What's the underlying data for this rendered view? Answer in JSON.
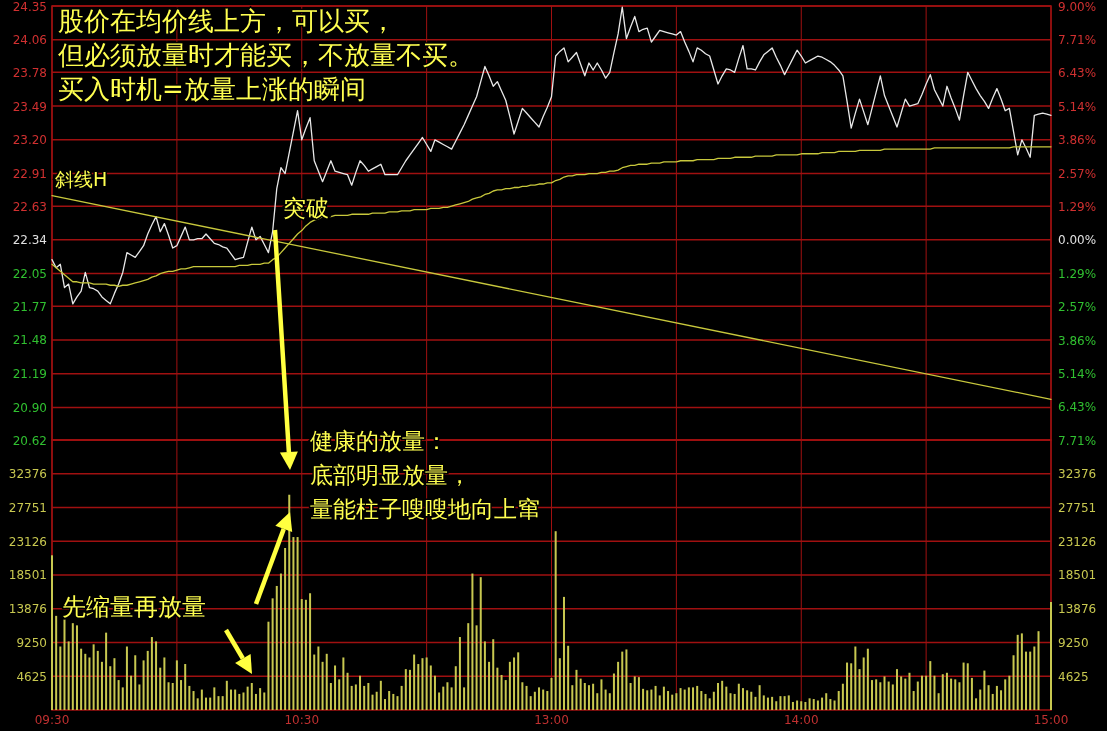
{
  "chart_data": [
    {
      "type": "line",
      "categories": [
        "09:30",
        null,
        null,
        null,
        null,
        null,
        null,
        null,
        null,
        null,
        null,
        null,
        null,
        null,
        null,
        null,
        null,
        null,
        null,
        null,
        null,
        null,
        null,
        null,
        null,
        null,
        null,
        null,
        null,
        null,
        null,
        null,
        null,
        null,
        null,
        null,
        null,
        null,
        null,
        null,
        null,
        null,
        null,
        null,
        null,
        null,
        null,
        null,
        null,
        null,
        null,
        null,
        null,
        null,
        null,
        null,
        null,
        null,
        null,
        null,
        "10:30",
        null,
        null,
        null,
        null,
        null,
        null,
        null,
        null,
        null,
        null,
        null,
        null,
        null,
        null,
        null,
        null,
        null,
        null,
        null,
        null,
        null,
        null,
        null,
        null,
        null,
        null,
        null,
        null,
        null,
        null,
        null,
        null,
        null,
        null,
        null,
        null,
        null,
        null,
        null,
        null,
        null,
        null,
        null,
        null,
        null,
        null,
        null,
        null,
        null,
        null,
        null,
        null,
        null,
        null,
        null,
        null,
        null,
        null,
        null,
        "13:00",
        null,
        null,
        null,
        null,
        null,
        null,
        null,
        null,
        null,
        null,
        null,
        null,
        null,
        null,
        null,
        null,
        null,
        null,
        null,
        null,
        null,
        null,
        null,
        null,
        null,
        null,
        null,
        null,
        null,
        null,
        null,
        null,
        null,
        null,
        null,
        null,
        null,
        null,
        null,
        null,
        null,
        null,
        null,
        null,
        null,
        null,
        null,
        null,
        null,
        null,
        null,
        null,
        null,
        null,
        null,
        null,
        null,
        null,
        null,
        "14:00",
        null,
        null,
        null,
        null,
        null,
        null,
        null,
        null,
        null,
        null,
        null,
        null,
        null,
        null,
        null,
        null,
        null,
        null,
        null,
        null,
        null,
        null,
        null,
        null,
        null,
        null,
        null,
        null,
        null,
        null,
        null,
        null,
        null,
        null,
        null,
        null,
        null,
        null,
        null,
        null,
        null,
        null,
        null,
        null,
        null,
        null,
        null,
        null,
        null,
        null,
        null,
        null,
        null,
        null,
        null,
        null,
        null,
        null,
        null,
        "15:00"
      ],
      "ylim": [
        20.62,
        24.35
      ],
      "yticks": [
        {
          "value": 24.35,
          "label": "24.35"
        },
        {
          "value": 24.06,
          "label": "24.06"
        },
        {
          "value": 23.78,
          "label": "23.78"
        },
        {
          "value": 23.49,
          "label": "23.49"
        },
        {
          "value": 23.2,
          "label": "23.20"
        },
        {
          "value": 22.91,
          "label": "22.91"
        },
        {
          "value": 22.63,
          "label": "22.63"
        },
        {
          "value": 22.34,
          "label": "22.34"
        },
        {
          "value": 22.05,
          "label": "22.05"
        },
        {
          "value": 21.77,
          "label": "21.77"
        },
        {
          "value": 21.48,
          "label": "21.48"
        },
        {
          "value": 21.19,
          "label": "21.19"
        },
        {
          "value": 20.9,
          "label": "20.90"
        },
        {
          "value": 20.62,
          "label": "20.62"
        }
      ],
      "y2lim": [
        -7.71,
        9.0
      ],
      "y2ticks": [
        {
          "value": 9.0,
          "label": "9.00%"
        },
        {
          "value": 7.71,
          "label": "7.71%"
        },
        {
          "value": 6.43,
          "label": "6.43%"
        },
        {
          "value": 5.14,
          "label": "5.14%"
        },
        {
          "value": 3.86,
          "label": "3.86%"
        },
        {
          "value": 2.57,
          "label": "2.57%"
        },
        {
          "value": 1.29,
          "label": "1.29%"
        },
        {
          "value": 0,
          "label": "0.00%"
        },
        {
          "value": -1.29,
          "label": "1.29%"
        },
        {
          "value": -2.57,
          "label": "2.57%"
        },
        {
          "value": -3.86,
          "label": "3.86%"
        },
        {
          "value": -5.14,
          "label": "5.14%"
        },
        {
          "value": -6.43,
          "label": "6.43%"
        },
        {
          "value": -7.71,
          "label": "7.71%"
        }
      ],
      "tick_labels": "y",
      "grid": true,
      "series": [
        {
          "color": "#e8e8e8",
          "values": [
            22.17,
            22.1,
            22.13,
            21.93,
            21.96,
            21.79,
            21.85,
            21.9,
            22.06,
            21.93,
            21.92,
            21.9,
            21.85,
            21.82,
            21.79,
            21.88,
            21.96,
            22.06,
            22.23,
            22.21,
            22.19,
            22.24,
            22.29,
            22.39,
            22.47,
            22.54,
            22.41,
            22.48,
            22.38,
            22.27,
            22.29,
            22.37,
            22.45,
            22.34,
            22.34,
            22.35,
            22.35,
            22.39,
            22.35,
            22.31,
            22.3,
            22.28,
            22.27,
            22.22,
            22.17,
            22.18,
            22.19,
            22.32,
            22.45,
            22.34,
            22.37,
            22.3,
            22.23,
            22.41,
            22.78,
            22.96,
            22.91,
            23.09,
            23.27,
            23.45,
            23.2,
            23.3,
            23.39,
            23.02,
            22.93,
            22.84,
            22.93,
            23.02,
            22.93,
            22.92,
            22.91,
            22.9,
            22.81,
            22.92,
            23.02,
            22.98,
            22.93,
            22.95,
            22.97,
            22.99,
            22.9,
            22.9,
            22.9,
            22.9,
            22.96,
            23.02,
            23.07,
            23.12,
            23.17,
            23.22,
            23.16,
            23.1,
            23.2,
            23.18,
            23.16,
            23.14,
            23.12,
            23.19,
            23.26,
            23.33,
            23.41,
            23.49,
            23.57,
            23.7,
            23.83,
            23.75,
            23.66,
            23.7,
            23.62,
            23.54,
            23.4,
            23.25,
            23.36,
            23.47,
            23.43,
            23.39,
            23.35,
            23.31,
            23.4,
            23.48,
            23.57,
            23.92,
            23.96,
            23.99,
            23.87,
            23.91,
            23.95,
            23.85,
            23.75,
            23.86,
            23.8,
            23.86,
            23.8,
            23.73,
            23.78,
            23.95,
            24.11,
            24.34,
            24.07,
            24.17,
            24.26,
            24.13,
            24.15,
            24.16,
            24.04,
            24.09,
            24.14,
            24.13,
            24.12,
            24.11,
            24.1,
            24.13,
            24.04,
            23.96,
            23.87,
            23.99,
            23.97,
            23.94,
            23.92,
            23.8,
            23.68,
            23.75,
            23.81,
            23.8,
            23.78,
            23.9,
            24.01,
            23.81,
            23.81,
            23.8,
            23.87,
            23.93,
            23.96,
            23.99,
            23.91,
            23.84,
            23.76,
            23.83,
            23.9,
            23.97,
            23.92,
            23.86,
            23.88,
            23.9,
            23.92,
            23.91,
            23.89,
            23.87,
            23.84,
            23.8,
            23.75,
            23.53,
            23.3,
            23.43,
            23.55,
            23.44,
            23.33,
            23.47,
            23.61,
            23.75,
            23.58,
            23.49,
            23.4,
            23.31,
            23.43,
            23.55,
            23.49,
            23.5,
            23.51,
            23.59,
            23.68,
            23.76,
            23.63,
            23.56,
            23.49,
            23.66,
            23.56,
            23.47,
            23.37,
            23.58,
            23.78,
            23.71,
            23.64,
            23.58,
            23.53,
            23.47,
            23.56,
            23.64,
            23.55,
            23.45,
            23.47,
            23.27,
            23.07,
            23.2,
            23.13,
            23.05,
            23.41,
            23.42,
            23.43,
            23.42,
            23.41
          ]
        },
        {
          "color": "#c8c83c",
          "values": [
            22.13,
            22.1,
            22.07,
            22.04,
            22.01,
            21.98,
            21.98,
            21.97,
            21.97,
            21.97,
            21.96,
            21.96,
            21.96,
            21.96,
            21.95,
            21.95,
            21.94,
            21.95,
            21.95,
            21.96,
            21.97,
            21.98,
            21.99,
            22.0,
            22.02,
            22.03,
            22.05,
            22.06,
            22.07,
            22.07,
            22.08,
            22.09,
            22.09,
            22.1,
            22.11,
            22.11,
            22.11,
            22.11,
            22.11,
            22.11,
            22.11,
            22.11,
            22.11,
            22.11,
            22.11,
            22.12,
            22.12,
            22.12,
            22.13,
            22.13,
            22.13,
            22.14,
            22.14,
            22.17,
            22.19,
            22.23,
            22.27,
            22.31,
            22.35,
            22.39,
            22.42,
            22.46,
            22.49,
            22.51,
            22.52,
            22.54,
            22.54,
            22.54,
            22.55,
            22.55,
            22.55,
            22.55,
            22.56,
            22.56,
            22.56,
            22.56,
            22.56,
            22.57,
            22.57,
            22.57,
            22.57,
            22.58,
            22.58,
            22.58,
            22.59,
            22.59,
            22.59,
            22.6,
            22.6,
            22.6,
            22.6,
            22.61,
            22.61,
            22.61,
            22.62,
            22.62,
            22.63,
            22.64,
            22.65,
            22.66,
            22.67,
            22.69,
            22.7,
            22.71,
            22.73,
            22.74,
            22.76,
            22.77,
            22.77,
            22.78,
            22.78,
            22.79,
            22.79,
            22.8,
            22.8,
            22.81,
            22.81,
            22.82,
            22.82,
            22.83,
            22.83,
            22.85,
            22.86,
            22.88,
            22.89,
            22.89,
            22.9,
            22.9,
            22.9,
            22.91,
            22.91,
            22.91,
            22.92,
            22.92,
            22.93,
            22.93,
            22.94,
            22.96,
            22.97,
            22.98,
            22.98,
            22.99,
            22.99,
            22.99,
            23.0,
            23.0,
            23.0,
            23.01,
            23.01,
            23.01,
            23.01,
            23.02,
            23.02,
            23.02,
            23.02,
            23.03,
            23.03,
            23.03,
            23.03,
            23.03,
            23.04,
            23.04,
            23.04,
            23.04,
            23.05,
            23.05,
            23.05,
            23.05,
            23.05,
            23.06,
            23.06,
            23.06,
            23.06,
            23.06,
            23.07,
            23.07,
            23.07,
            23.07,
            23.07,
            23.07,
            23.08,
            23.08,
            23.08,
            23.08,
            23.08,
            23.09,
            23.09,
            23.09,
            23.09,
            23.1,
            23.1,
            23.1,
            23.1,
            23.1,
            23.11,
            23.11,
            23.11,
            23.11,
            23.11,
            23.11,
            23.12,
            23.12,
            23.12,
            23.12,
            23.12,
            23.12,
            23.12,
            23.12,
            23.12,
            23.12,
            23.12,
            23.12,
            23.13,
            23.13,
            23.13,
            23.13,
            23.13,
            23.13,
            23.13,
            23.13,
            23.13,
            23.13,
            23.13,
            23.13,
            23.13,
            23.13,
            23.13,
            23.13,
            23.13,
            23.13,
            23.13,
            23.14,
            23.14,
            23.14,
            23.14,
            23.14,
            23.14,
            23.14,
            23.14,
            23.14,
            23.14
          ]
        },
        {
          "color": "#c8c83c",
          "x": [
            "09:30",
            "15:00"
          ],
          "values": [
            22.72,
            20.97
          ]
        }
      ],
      "annotations": [
        "股价在均价线上方，可以买，",
        "但必须放量时才能买，不放量不买。",
        "买入时机=放量上涨的瞬间",
        {
          "text": "斜线H",
          "x": "09:30",
          "y": 22.72
        },
        "突破"
      ]
    },
    {
      "type": "bar",
      "categories": [
        "09:30",
        null,
        null,
        null,
        null,
        null,
        null,
        null,
        null,
        null,
        null,
        null,
        null,
        null,
        null,
        null,
        null,
        null,
        null,
        null,
        null,
        null,
        null,
        null,
        null,
        null,
        null,
        null,
        null,
        null,
        null,
        null,
        null,
        null,
        null,
        null,
        null,
        null,
        null,
        null,
        null,
        null,
        null,
        null,
        null,
        null,
        null,
        null,
        null,
        null,
        null,
        null,
        null,
        null,
        null,
        null,
        null,
        null,
        null,
        null,
        "10:30",
        null,
        null,
        null,
        null,
        null,
        null,
        null,
        null,
        null,
        null,
        null,
        null,
        null,
        null,
        null,
        null,
        null,
        null,
        null,
        null,
        null,
        null,
        null,
        null,
        null,
        null,
        null,
        null,
        null,
        null,
        null,
        null,
        null,
        null,
        null,
        null,
        null,
        null,
        null,
        null,
        null,
        null,
        null,
        null,
        null,
        null,
        null,
        null,
        null,
        null,
        null,
        null,
        null,
        null,
        null,
        null,
        null,
        null,
        null,
        "13:00",
        null,
        null,
        null,
        null,
        null,
        null,
        null,
        null,
        null,
        null,
        null,
        null,
        null,
        null,
        null,
        null,
        null,
        null,
        null,
        null,
        null,
        null,
        null,
        null,
        null,
        null,
        null,
        null,
        null,
        null,
        null,
        null,
        null,
        null,
        null,
        null,
        null,
        null,
        null,
        null,
        null,
        null,
        null,
        null,
        null,
        null,
        null,
        null,
        null,
        null,
        null,
        null,
        null,
        null,
        null,
        null,
        null,
        null,
        null,
        "14:00",
        null,
        null,
        null,
        null,
        null,
        null,
        null,
        null,
        null,
        null,
        null,
        null,
        null,
        null,
        null,
        null,
        null,
        null,
        null,
        null,
        null,
        null,
        null,
        null,
        null,
        null,
        null,
        null,
        null,
        null,
        null,
        null,
        null,
        null,
        null,
        null,
        null,
        null,
        null,
        null,
        null,
        null,
        null,
        null,
        null,
        null,
        null,
        null,
        null,
        null,
        null,
        null,
        null,
        null,
        null,
        null,
        null,
        null,
        null,
        "15:00"
      ],
      "ylim": [
        0,
        37000
      ],
      "yticks": [
        4625,
        9250,
        13876,
        18501,
        23126,
        27751,
        32376
      ],
      "y2lim": [
        0,
        37000
      ],
      "y2ticks": [
        4625,
        9250,
        13876,
        18501,
        23126,
        27751,
        32376
      ],
      "grid": true,
      "series": [
        {
          "color": "#c8c850",
          "values": [
            21200,
            12900,
            8700,
            12400,
            9400,
            11900,
            11600,
            8400,
            7700,
            7200,
            9000,
            8100,
            6600,
            10600,
            6000,
            7100,
            4100,
            3100,
            8700,
            4700,
            7500,
            3500,
            6800,
            8100,
            10000,
            9400,
            5800,
            7200,
            3800,
            3700,
            6800,
            4100,
            6300,
            3300,
            2600,
            1600,
            2800,
            1700,
            1700,
            3100,
            1900,
            1900,
            4000,
            2800,
            2800,
            2200,
            2400,
            3200,
            3700,
            2200,
            3000,
            2400,
            12100,
            15300,
            17000,
            18700,
            22200,
            29500,
            23700,
            23700,
            15200,
            15100,
            16000,
            7600,
            8700,
            6600,
            7700,
            3700,
            6100,
            4200,
            7200,
            5100,
            3300,
            3500,
            4700,
            3300,
            3700,
            2100,
            2500,
            4000,
            1500,
            2600,
            2200,
            1900,
            3300,
            5600,
            5500,
            7600,
            6300,
            7100,
            7200,
            6100,
            4700,
            2400,
            3200,
            3800,
            3100,
            6000,
            10000,
            3100,
            11900,
            18700,
            11600,
            18200,
            9400,
            6600,
            9700,
            5800,
            4800,
            4100,
            6600,
            7200,
            7900,
            3800,
            3300,
            1900,
            2500,
            3100,
            2800,
            2600,
            4400,
            24500,
            7100,
            15500,
            8800,
            3400,
            5500,
            4300,
            3700,
            3400,
            3600,
            2300,
            4200,
            2800,
            2300,
            5000,
            6600,
            8000,
            8300,
            3700,
            4600,
            4500,
            2900,
            2700,
            2800,
            3300,
            2000,
            3200,
            2600,
            2100,
            2300,
            3000,
            2800,
            3100,
            3100,
            3300,
            2600,
            2200,
            1600,
            2500,
            3700,
            4000,
            3200,
            2300,
            2200,
            3600,
            3000,
            2700,
            2500,
            1800,
            3400,
            2000,
            1700,
            1800,
            1200,
            1900,
            1900,
            2000,
            1100,
            1300,
            1200,
            1100,
            1600,
            1500,
            1300,
            1700,
            2300,
            1500,
            1300,
            2600,
            3600,
            6500,
            6400,
            8700,
            5600,
            7200,
            8400,
            4100,
            4200,
            3800,
            4600,
            3900,
            3500,
            5600,
            4600,
            4300,
            5100,
            2600,
            3900,
            4700,
            4700,
            6700,
            4700,
            2300,
            4900,
            5100,
            4300,
            4200,
            3800,
            6500,
            6400,
            4400,
            1600,
            2800,
            5400,
            3400,
            2200,
            3300,
            2700,
            4200,
            4700,
            7500,
            10300,
            10500,
            8000,
            8000,
            8700,
            10800,
            null,
            null,
            14800
          ]
        }
      ],
      "annotations": [
        "健康的放量：",
        "底部明显放量，",
        "量能柱子嗖嗖地向上窜",
        "先缩量再放量"
      ]
    }
  ]
}
